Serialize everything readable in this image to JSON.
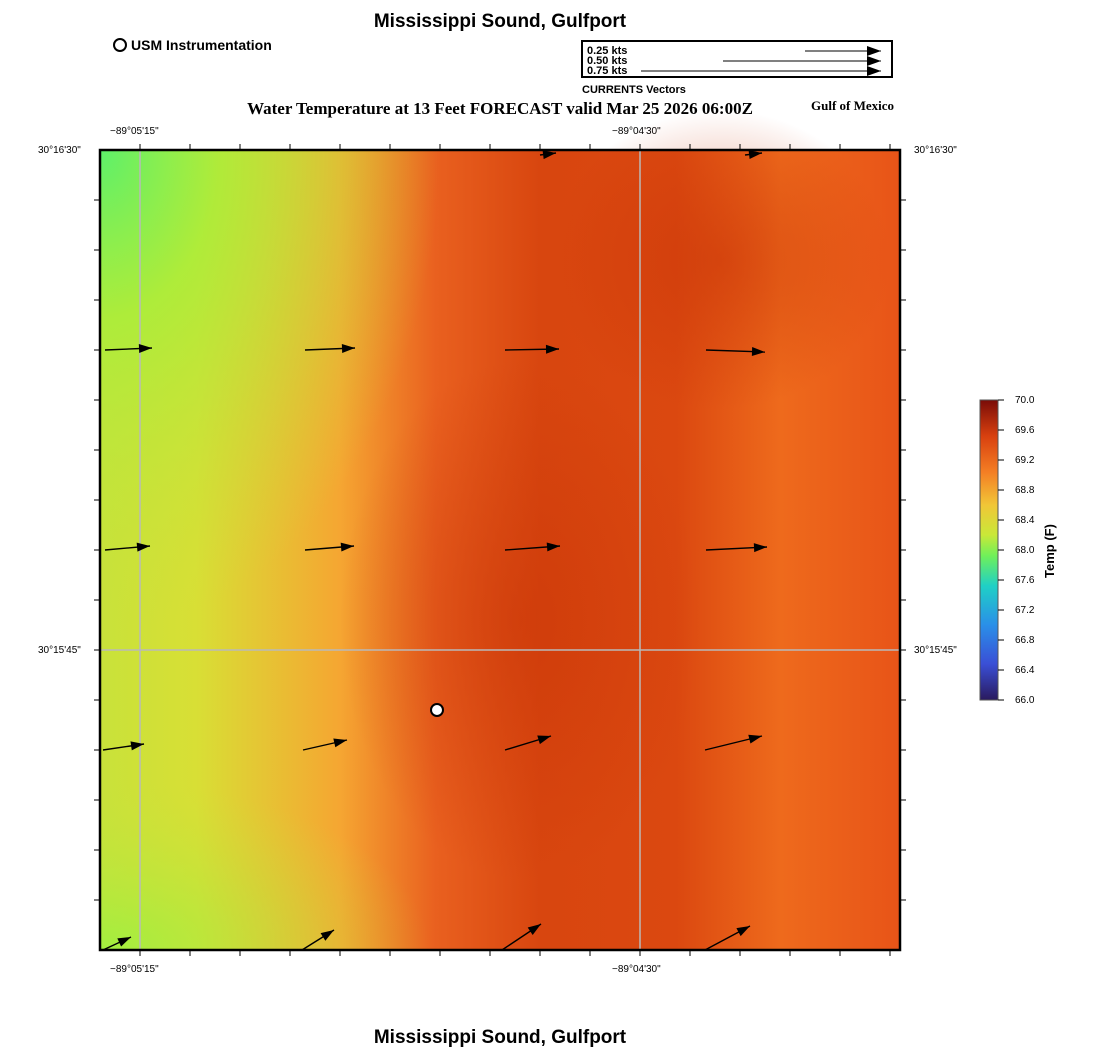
{
  "header": {
    "top_title": "Mississippi Sound, Gulfport",
    "bottom_title": "Mississippi Sound, Gulfport",
    "usm_legend": "USM Instrumentation",
    "map_title": "Water Temperature at 13 Feet FORECAST valid Mar 25 2026 06:00Z",
    "region_label": "Gulf of Mexico"
  },
  "vector_legend": {
    "caption": "CURRENTS Vectors",
    "entries": [
      {
        "label": "0.25 kts",
        "speed_kts": 0.25
      },
      {
        "label": "0.50 kts",
        "speed_kts": 0.5
      },
      {
        "label": "0.75 kts",
        "speed_kts": 0.75
      }
    ]
  },
  "axes": {
    "lon_ticks": [
      "−89°05'15\"",
      "−89°04'30\""
    ],
    "lat_ticks": [
      "30°16'30\"",
      "30°15'45\""
    ]
  },
  "colorbar": {
    "title": "Temp (F)",
    "min": 66.0,
    "max": 70.0,
    "ticks": [
      "70.0",
      "69.6",
      "69.2",
      "68.8",
      "68.4",
      "68.0",
      "67.6",
      "67.2",
      "66.8",
      "66.4",
      "66.0"
    ]
  },
  "station": {
    "name": "USM Instrumentation"
  },
  "colors": {
    "low": "#2a1a5e",
    "mid": "#d4e033",
    "high": "#8b0f0a",
    "arrow": "#000000"
  }
}
